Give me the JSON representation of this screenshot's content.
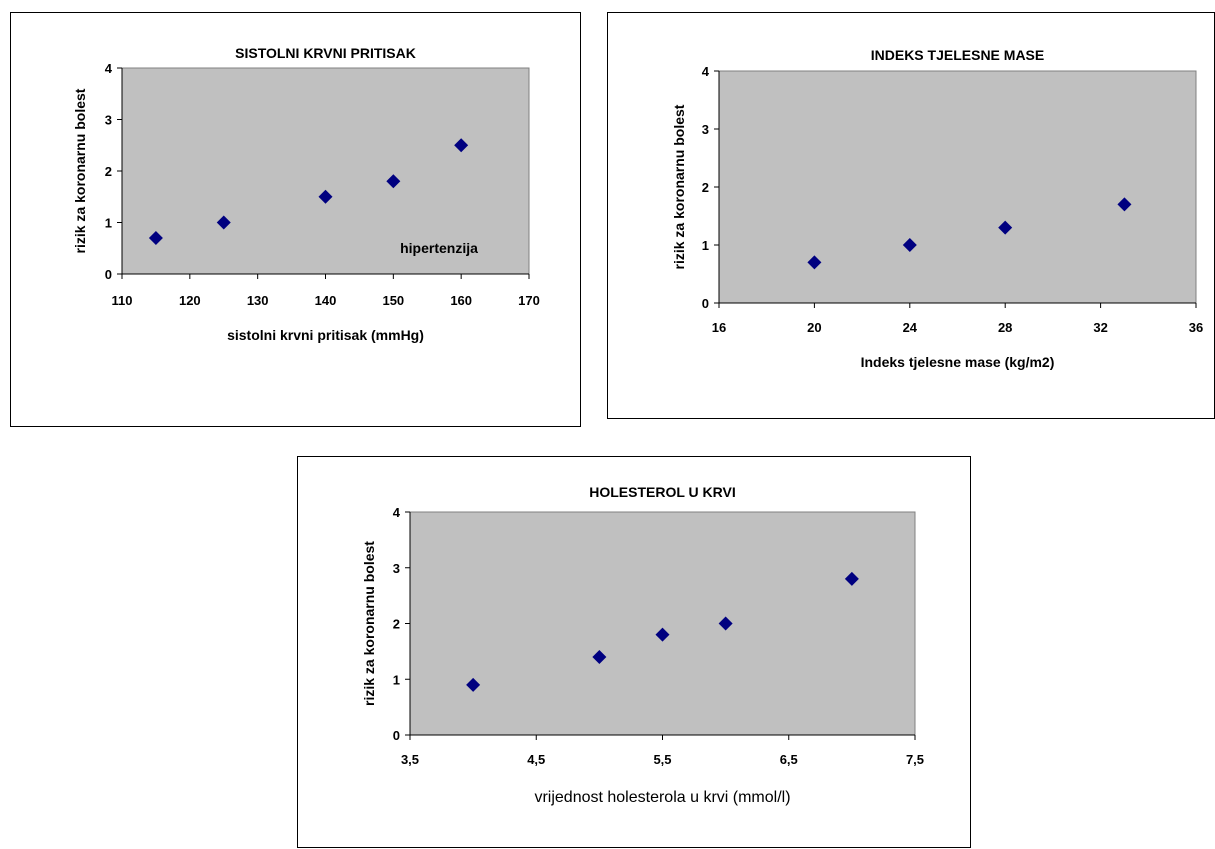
{
  "chart_data": [
    {
      "type": "scatter",
      "title": "SISTOLNI KRVNI PRITISAK",
      "xlabel": "sistolni krvni pritisak (mmHg)",
      "ylabel": "rizik za koronarnu bolest",
      "xlim": [
        110,
        170
      ],
      "ylim": [
        0,
        4
      ],
      "xticks": [
        "110",
        "120",
        "130",
        "140",
        "150",
        "160",
        "170"
      ],
      "yticks": [
        "0",
        "1",
        "2",
        "3",
        "4"
      ],
      "x": [
        115,
        125,
        140,
        150,
        160
      ],
      "y": [
        0.7,
        1.0,
        1.5,
        1.8,
        2.5
      ],
      "annotation": "hipertenzija",
      "grid": false,
      "plot_bg": "#c0c0c0",
      "marker_color": "#000080"
    },
    {
      "type": "scatter",
      "title": "INDEKS TJELESNE MASE",
      "xlabel": "Indeks tjelesne mase (kg/m2)",
      "ylabel": "rizik za koronarnu bolest",
      "xlim": [
        16,
        36
      ],
      "ylim": [
        0,
        4
      ],
      "xticks": [
        "16",
        "20",
        "24",
        "28",
        "32",
        "36"
      ],
      "yticks": [
        "0",
        "1",
        "2",
        "3",
        "4"
      ],
      "x": [
        20,
        24,
        28,
        33
      ],
      "y": [
        0.7,
        1.0,
        1.3,
        1.7
      ],
      "grid": false,
      "plot_bg": "#c0c0c0",
      "marker_color": "#000080"
    },
    {
      "type": "scatter",
      "title": "HOLESTEROL U KRVI",
      "xlabel": "vrijednost holesterola u krvi (mmol/l)",
      "ylabel": "rizik za koronarnu bolest",
      "xlim": [
        3.5,
        7.5
      ],
      "ylim": [
        0,
        4
      ],
      "xticks": [
        "3,5",
        "4,5",
        "5,5",
        "6,5",
        "7,5"
      ],
      "yticks": [
        "0",
        "1",
        "2",
        "3",
        "4"
      ],
      "x": [
        4.0,
        5.0,
        5.5,
        6.0,
        7.0
      ],
      "y": [
        0.9,
        1.4,
        1.8,
        2.0,
        2.8
      ],
      "grid": false,
      "plot_bg": "#c0c0c0",
      "marker_color": "#000080"
    }
  ]
}
